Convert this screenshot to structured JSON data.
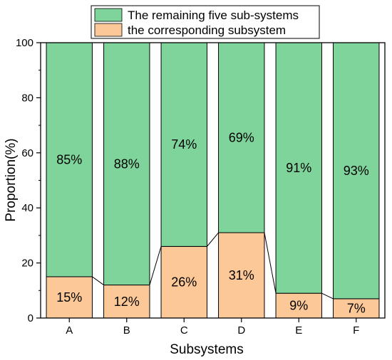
{
  "chart_data": {
    "type": "bar",
    "stacked": true,
    "categories": [
      "A",
      "B",
      "C",
      "D",
      "E",
      "F"
    ],
    "series": [
      {
        "name": "the corresponding subsystem",
        "values": [
          15,
          12,
          26,
          31,
          9,
          7
        ],
        "labels": [
          "15%",
          "12%",
          "26%",
          "31%",
          "9%",
          "7%"
        ],
        "color": "#fdc897"
      },
      {
        "name": "The remaining five sub-systems",
        "values": [
          85,
          88,
          74,
          69,
          91,
          93
        ],
        "labels": [
          "85%",
          "88%",
          "74%",
          "69%",
          "91%",
          "93%"
        ],
        "color": "#7fd49b"
      }
    ],
    "xlabel": "Subsystems",
    "ylabel": "Proportion(%)",
    "ylim": [
      0,
      100
    ],
    "yticks": [
      "0",
      "20",
      "40",
      "60",
      "80",
      "100"
    ],
    "connector_lines": true,
    "grid": false,
    "legend": {
      "position": "top-center",
      "entries": [
        "The remaining five sub-systems",
        "the corresponding subsystem"
      ]
    }
  }
}
